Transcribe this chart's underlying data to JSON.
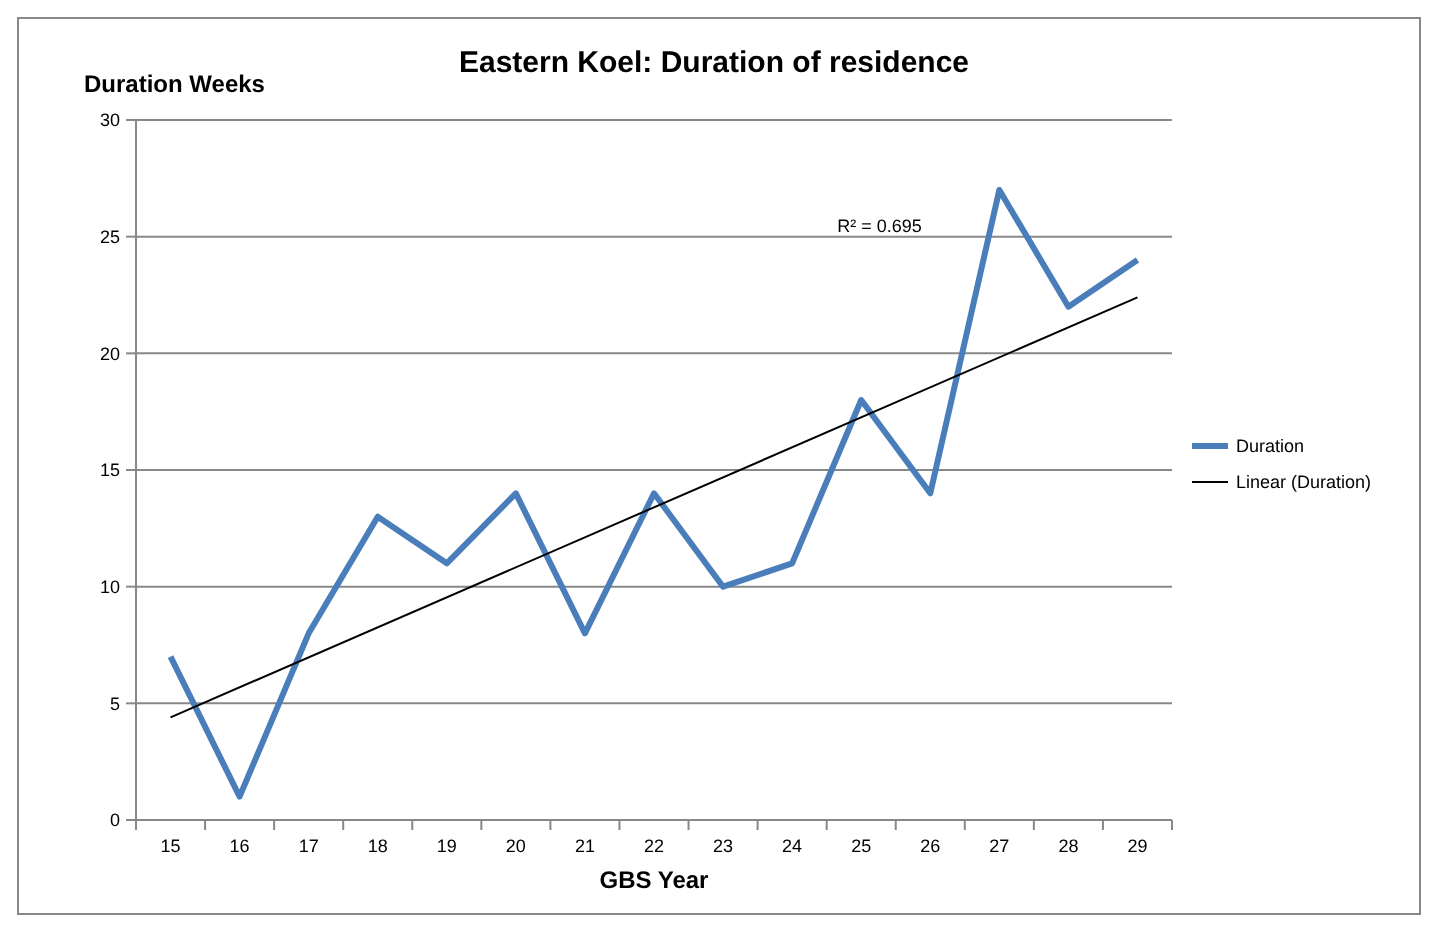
{
  "chart_data": {
    "type": "line",
    "title": "Eastern Koel: Duration of residence",
    "xlabel": "GBS Year",
    "ylabel": "Duration Weeks",
    "categories": [
      "15",
      "16",
      "17",
      "18",
      "19",
      "20",
      "21",
      "22",
      "23",
      "24",
      "25",
      "26",
      "27",
      "28",
      "29"
    ],
    "series": [
      {
        "name": "Duration",
        "color": "#4a7ebb",
        "values": [
          7,
          1,
          8,
          13,
          11,
          14,
          8,
          14,
          10,
          11,
          18,
          14,
          27,
          22,
          24
        ]
      },
      {
        "name": "Linear (Duration)",
        "color": "#000000",
        "x": [
          "15",
          "29"
        ],
        "values": [
          4.4,
          22.4
        ]
      }
    ],
    "annotations": [
      "R² = 0.695"
    ],
    "ylim": [
      0,
      30
    ],
    "yticks": [
      0,
      5,
      10,
      15,
      20,
      25,
      30
    ],
    "grid": "y",
    "legend": "right"
  }
}
